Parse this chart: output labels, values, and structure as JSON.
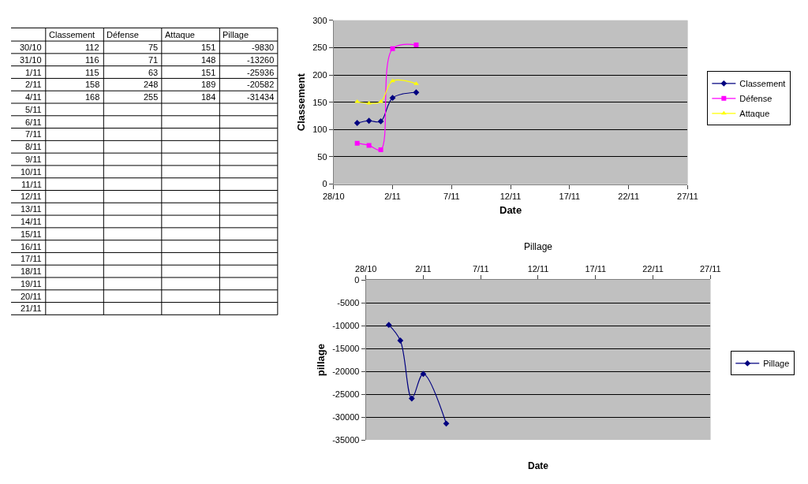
{
  "chart_data": [
    {
      "type": "other",
      "data_labels": true,
      "categories": [
        "30/10",
        "31/10",
        "1/11",
        "2/11",
        "4/11",
        "5/11",
        "6/11",
        "7/11",
        "8/11",
        "9/11",
        "10/11",
        "11/11",
        "12/11",
        "13/11",
        "14/11",
        "15/11",
        "16/11",
        "17/11",
        "18/11",
        "19/11",
        "20/11",
        "21/11"
      ],
      "series": [
        {
          "name": "Classement",
          "values": [
            112,
            116,
            115,
            158,
            168,
            null,
            null,
            null,
            null,
            null,
            null,
            null,
            null,
            null,
            null,
            null,
            null,
            null,
            null,
            null,
            null,
            null
          ]
        },
        {
          "name": "Défense",
          "values": [
            75,
            71,
            63,
            248,
            255,
            null,
            null,
            null,
            null,
            null,
            null,
            null,
            null,
            null,
            null,
            null,
            null,
            null,
            null,
            null,
            null,
            null
          ]
        },
        {
          "name": "Attaque",
          "values": [
            151,
            148,
            151,
            189,
            184,
            null,
            null,
            null,
            null,
            null,
            null,
            null,
            null,
            null,
            null,
            null,
            null,
            null,
            null,
            null,
            null,
            null
          ]
        },
        {
          "name": "Pillage",
          "values": [
            -9830,
            -13260,
            -25936,
            -20582,
            -31434,
            null,
            null,
            null,
            null,
            null,
            null,
            null,
            null,
            null,
            null,
            null,
            null,
            null,
            null,
            null,
            null,
            null
          ]
        }
      ]
    },
    {
      "type": "line",
      "xlabel": "Date",
      "ylabel": "Classement",
      "x": [
        "--10-30",
        "--10-31",
        "--11-01",
        "--11-02",
        "--11-04"
      ],
      "series": [
        {
          "name": "Classement",
          "color": "#000080",
          "marker": "diamond",
          "values": [
            112,
            116,
            115,
            158,
            168
          ]
        },
        {
          "name": "Défense",
          "color": "#ff00ff",
          "marker": "square",
          "values": [
            75,
            71,
            63,
            248,
            255
          ]
        },
        {
          "name": "Attaque",
          "color": "#ffff00",
          "marker": "triangle",
          "values": [
            151,
            148,
            151,
            189,
            184
          ]
        }
      ],
      "xlim": [
        "--10-28",
        "--11-27"
      ],
      "xticks": [
        {
          "value": "--10-28",
          "label": "28/10"
        },
        {
          "value": "--11-02",
          "label": "2/11"
        },
        {
          "value": "--11-07",
          "label": "7/11"
        },
        {
          "value": "--11-12",
          "label": "12/11"
        },
        {
          "value": "--11-17",
          "label": "17/11"
        },
        {
          "value": "--11-22",
          "label": "22/11"
        },
        {
          "value": "--11-27",
          "label": "27/11"
        }
      ],
      "ylim": [
        0,
        300
      ],
      "yticks": [
        0,
        50,
        100,
        150,
        200,
        250,
        300
      ],
      "grid": "y",
      "legend": "right"
    },
    {
      "type": "line",
      "title": "Pillage",
      "xlabel": "Date",
      "ylabel": "pillage",
      "x": [
        "--10-30",
        "--10-31",
        "--11-01",
        "--11-02",
        "--11-04"
      ],
      "series": [
        {
          "name": "Pillage",
          "color": "#000080",
          "marker": "diamond",
          "values": [
            -9830,
            -13260,
            -25936,
            -20582,
            -31434
          ]
        }
      ],
      "xlim": [
        "--10-28",
        "--11-27"
      ],
      "xticks": [
        {
          "value": "--10-28",
          "label": "28/10"
        },
        {
          "value": "--11-02",
          "label": "2/11"
        },
        {
          "value": "--11-07",
          "label": "7/11"
        },
        {
          "value": "--11-12",
          "label": "12/11"
        },
        {
          "value": "--11-17",
          "label": "17/11"
        },
        {
          "value": "--11-22",
          "label": "22/11"
        },
        {
          "value": "--11-27",
          "label": "27/11"
        }
      ],
      "ylim": [
        -35000,
        0
      ],
      "yticks": [
        -35000,
        -30000,
        -25000,
        -20000,
        -15000,
        -10000,
        -5000,
        0
      ],
      "grid": "y",
      "legend": "right"
    }
  ]
}
